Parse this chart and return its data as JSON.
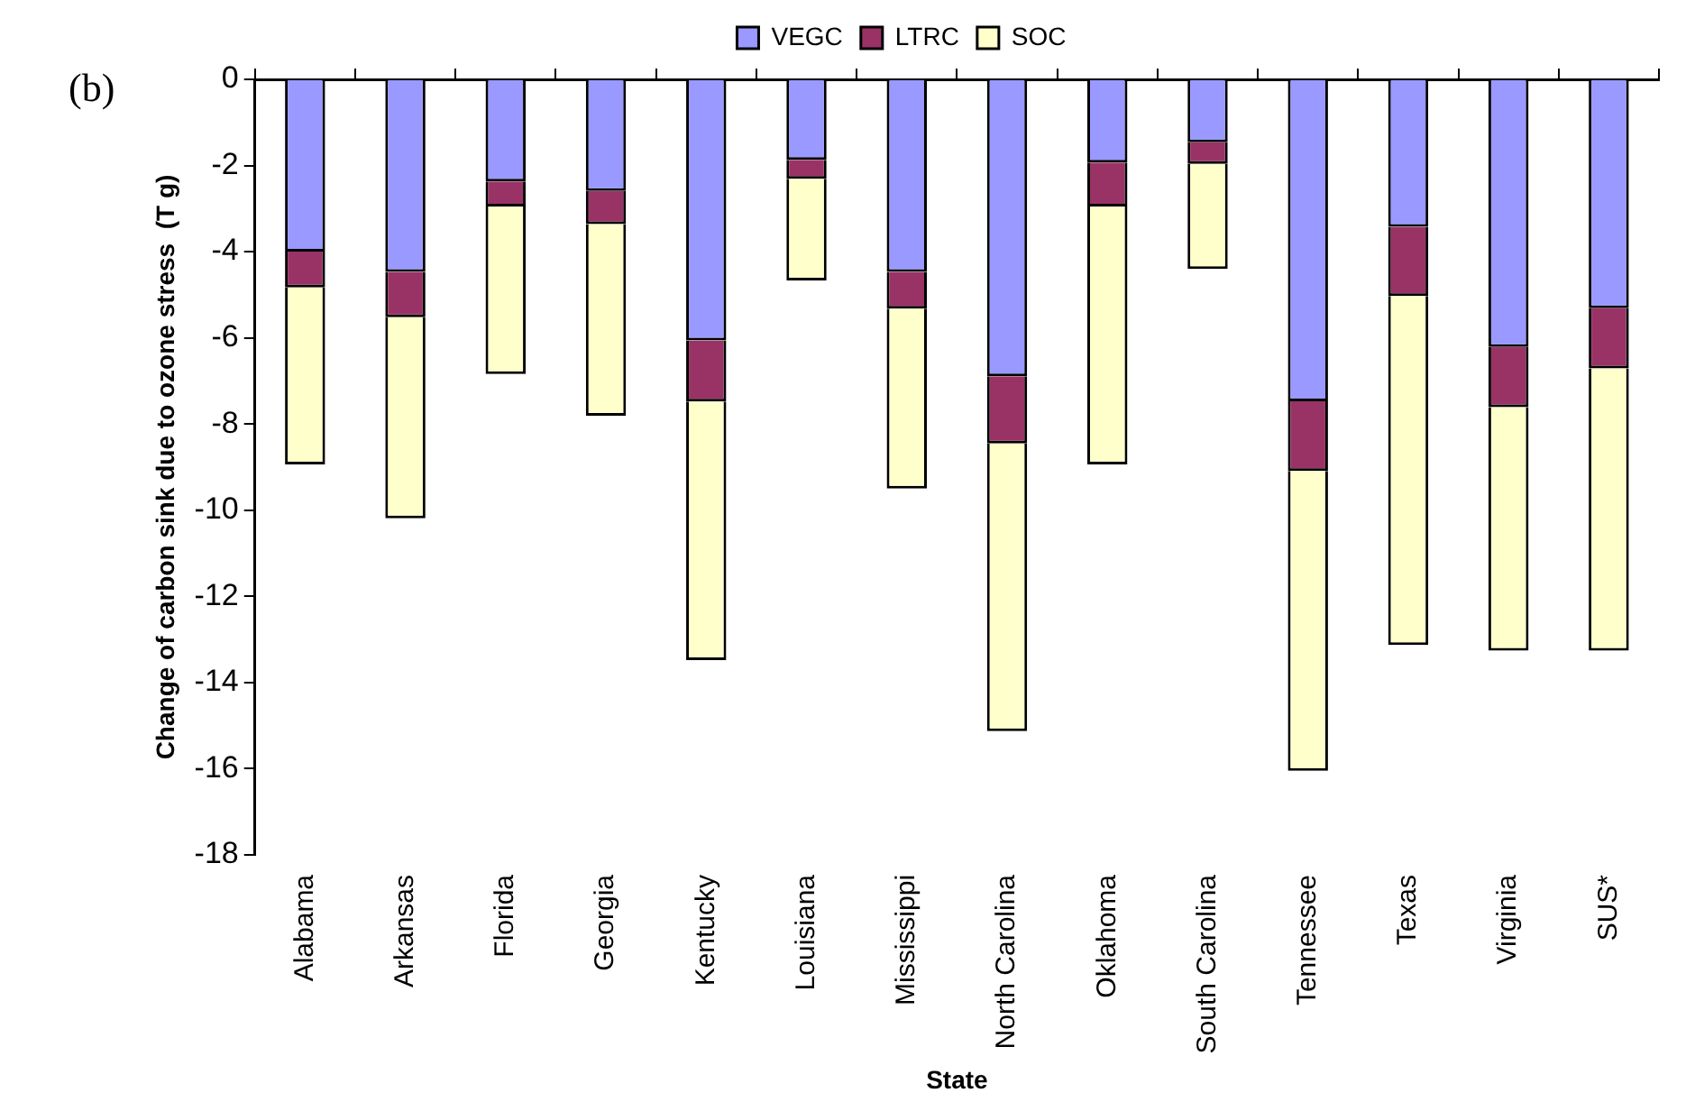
{
  "chart_data": {
    "type": "bar",
    "stacked": true,
    "xlabel": "State",
    "ylabel": "Change of carbon sink due to ozone stress  (T g)",
    "annotations": [
      "(b)"
    ],
    "categories": [
      "Alabama",
      "Arkansas",
      "Florida",
      "Georgia",
      "Kentucky",
      "Louisiana",
      "Mississippi",
      "North Carolina",
      "Oklahoma",
      "South Carolina",
      "Tennessee",
      "Texas",
      "Virginia",
      "SUS*"
    ],
    "series": [
      {
        "name": "VEGC",
        "color": "#9999ff",
        "values": [
          -4.0,
          -4.47,
          -2.37,
          -2.59,
          -6.06,
          -1.87,
          -4.47,
          -6.89,
          -1.93,
          -1.46,
          -7.47,
          -3.42,
          -6.21,
          -5.31
        ]
      },
      {
        "name": "LTRC",
        "color": "#993366",
        "values": [
          -0.83,
          -1.05,
          -0.58,
          -0.77,
          -1.42,
          -0.44,
          -0.85,
          -1.56,
          -1.02,
          -0.5,
          -1.62,
          -1.61,
          -1.4,
          -1.4
        ]
      },
      {
        "name": "SOC",
        "color": "#ffffcc",
        "values": [
          -4.11,
          -4.67,
          -3.89,
          -4.45,
          -6.0,
          -2.36,
          -4.18,
          -6.68,
          -5.99,
          -2.44,
          -6.96,
          -8.1,
          -5.65,
          -6.55
        ]
      }
    ],
    "ylim": [
      -18,
      0
    ],
    "yticks": [
      -18,
      -16,
      -14,
      -12,
      -10,
      -8,
      -6,
      -4,
      -2,
      0
    ],
    "grid": false,
    "legend": "top"
  }
}
